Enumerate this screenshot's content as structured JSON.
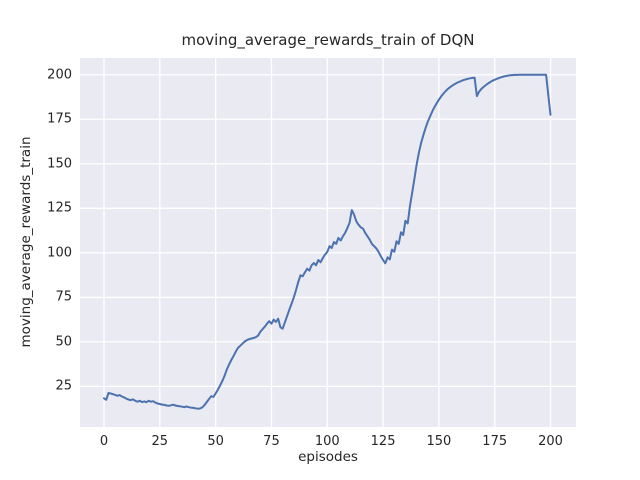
{
  "figure": {
    "background": "#ffffff",
    "plot_background": "#eaeaf2",
    "grid_color": "#ffffff",
    "text_color": "#262626"
  },
  "chart_data": {
    "type": "line",
    "title": "moving_average_rewards_train of DQN",
    "xlabel": "episodes",
    "ylabel": "moving_average_rewards_train",
    "grid": true,
    "legend": "none",
    "style": "seaborn-darkgrid",
    "xticks": [
      0,
      25,
      50,
      75,
      100,
      125,
      150,
      175,
      200
    ],
    "yticks": [
      25,
      50,
      75,
      100,
      125,
      150,
      175,
      200
    ],
    "xlim": [
      -10.75,
      211.4
    ],
    "ylim": [
      2.2,
      209.4
    ],
    "series": [
      {
        "name": "moving_average_rewards_train",
        "color": "#4c72b0",
        "x": [
          0,
          1,
          2,
          3,
          4,
          5,
          6,
          7,
          8,
          9,
          10,
          11,
          12,
          13,
          14,
          15,
          16,
          17,
          18,
          19,
          20,
          21,
          22,
          23,
          24,
          25,
          26,
          27,
          28,
          29,
          30,
          31,
          32,
          33,
          34,
          35,
          36,
          37,
          38,
          39,
          40,
          41,
          42,
          43,
          44,
          45,
          46,
          47,
          48,
          49,
          50,
          51,
          52,
          53,
          54,
          55,
          56,
          57,
          58,
          59,
          60,
          61,
          62,
          63,
          64,
          65,
          66,
          67,
          68,
          69,
          70,
          71,
          72,
          73,
          74,
          75,
          76,
          77,
          78,
          79,
          80,
          81,
          82,
          83,
          84,
          85,
          86,
          87,
          88,
          89,
          90,
          91,
          92,
          93,
          94,
          95,
          96,
          97,
          98,
          99,
          100,
          101,
          102,
          103,
          104,
          105,
          106,
          107,
          108,
          109,
          110,
          111,
          112,
          113,
          114,
          115,
          116,
          117,
          118,
          119,
          120,
          121,
          122,
          123,
          124,
          125,
          126,
          127,
          128,
          129,
          130,
          131,
          132,
          133,
          134,
          135,
          136,
          137,
          138,
          139,
          140,
          141,
          142,
          143,
          144,
          145,
          146,
          147,
          148,
          149,
          150,
          151,
          152,
          153,
          154,
          155,
          156,
          157,
          158,
          159,
          160,
          161,
          162,
          163,
          164,
          165,
          166,
          167,
          168,
          169,
          170,
          171,
          172,
          173,
          174,
          175,
          176,
          177,
          178,
          179,
          180,
          181,
          182,
          183,
          184,
          185,
          186,
          187,
          188,
          189,
          190,
          191,
          192,
          193,
          194,
          195,
          196,
          197,
          198,
          199,
          200
        ],
        "values": [
          18.3,
          17.5,
          21.3,
          21.0,
          20.6,
          20.2,
          19.7,
          20.1,
          19.3,
          18.8,
          18.1,
          17.6,
          17.3,
          17.7,
          16.9,
          16.4,
          16.9,
          16.2,
          16.6,
          16.1,
          16.9,
          16.4,
          16.7,
          15.9,
          15.4,
          15.1,
          14.8,
          14.6,
          14.3,
          14.1,
          14.4,
          14.7,
          14.3,
          14.0,
          13.8,
          13.6,
          13.4,
          13.7,
          13.3,
          13.1,
          12.9,
          12.7,
          12.5,
          12.6,
          13.2,
          14.5,
          16.2,
          17.8,
          19.5,
          19.1,
          21.0,
          23.2,
          25.5,
          28.0,
          31.0,
          34.5,
          37.2,
          39.8,
          42.0,
          44.4,
          46.6,
          47.8,
          49.0,
          50.2,
          51.0,
          51.5,
          51.9,
          52.2,
          52.6,
          53.5,
          55.6,
          57.1,
          58.5,
          60.2,
          61.6,
          60.2,
          62.5,
          61.2,
          63.0,
          58.2,
          57.4,
          61.0,
          64.5,
          68.0,
          71.5,
          75.0,
          79.0,
          83.5,
          87.4,
          86.8,
          89.0,
          91.1,
          90.0,
          93.0,
          94.3,
          93.0,
          96.0,
          94.7,
          97.1,
          99.0,
          100.5,
          103.7,
          102.7,
          106.1,
          105.0,
          108.4,
          106.9,
          109.3,
          111.2,
          114.0,
          117.0,
          124.0,
          121.4,
          117.7,
          115.8,
          114.3,
          113.6,
          111.2,
          109.3,
          107.4,
          105.0,
          103.7,
          102.4,
          100.5,
          98.0,
          96.0,
          94.1,
          97.5,
          96.3,
          101.8,
          100.6,
          106.5,
          105.0,
          111.5,
          110.0,
          118.0,
          116.5,
          126.0,
          133.5,
          141.5,
          149.5,
          156.0,
          161.5,
          166.0,
          170.0,
          173.5,
          176.5,
          179.3,
          181.8,
          184.0,
          186.0,
          187.8,
          189.4,
          190.8,
          192.0,
          193.0,
          193.9,
          194.7,
          195.4,
          196.0,
          196.5,
          197.0,
          197.4,
          197.7,
          198.0,
          198.2,
          198.3,
          188.0,
          190.5,
          192.0,
          193.2,
          194.2,
          195.1,
          195.9,
          196.6,
          197.2,
          197.7,
          198.2,
          198.6,
          199.0,
          199.3,
          199.5,
          199.7,
          199.8,
          199.9,
          199.9,
          200.0,
          200.0,
          200.0,
          200.0,
          200.0,
          200.0,
          200.0,
          200.0,
          200.0,
          200.0,
          200.0,
          200.0,
          200.0,
          188.5,
          177.5
        ]
      }
    ]
  }
}
